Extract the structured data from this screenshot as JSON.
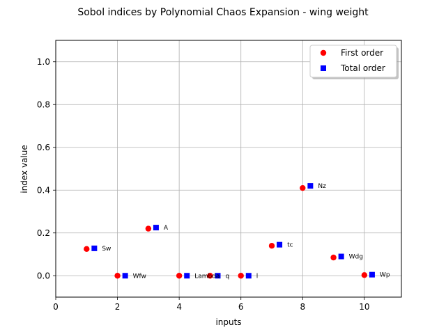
{
  "chart_data": {
    "type": "scatter",
    "title": "Sobol indices by Polynomial Chaos Expansion - wing weight",
    "xlabel": "inputs",
    "ylabel": "index value",
    "xlim": [
      0,
      11.2
    ],
    "ylim": [
      -0.1,
      1.1
    ],
    "xticks": [
      "0",
      "2",
      "4",
      "6",
      "8",
      "10"
    ],
    "yticks": [
      "0.0",
      "0.2",
      "0.4",
      "0.6",
      "0.8",
      "1.0"
    ],
    "grid": true,
    "legend_position": "top-right",
    "point_labels": [
      "Sw",
      "Wfw",
      "A",
      "Lambda",
      "q",
      "l",
      "tc",
      "Nz",
      "Wdg",
      "Wp"
    ],
    "series": [
      {
        "name": "First order",
        "marker": "circle",
        "color": "#ff0000",
        "x": [
          1,
          2,
          3,
          4,
          5,
          6,
          7,
          8,
          9,
          10
        ],
        "values": [
          0.125,
          0.0,
          0.22,
          0.0,
          0.0,
          0.0,
          0.14,
          0.41,
          0.085,
          0.003
        ]
      },
      {
        "name": "Total order",
        "marker": "square",
        "color": "#0000ff",
        "x": [
          1.25,
          2.25,
          3.25,
          4.25,
          5.25,
          6.25,
          7.25,
          8.25,
          9.25,
          10.25
        ],
        "values": [
          0.128,
          0.0,
          0.225,
          0.0,
          0.0,
          0.0,
          0.145,
          0.42,
          0.09,
          0.005
        ]
      }
    ]
  }
}
